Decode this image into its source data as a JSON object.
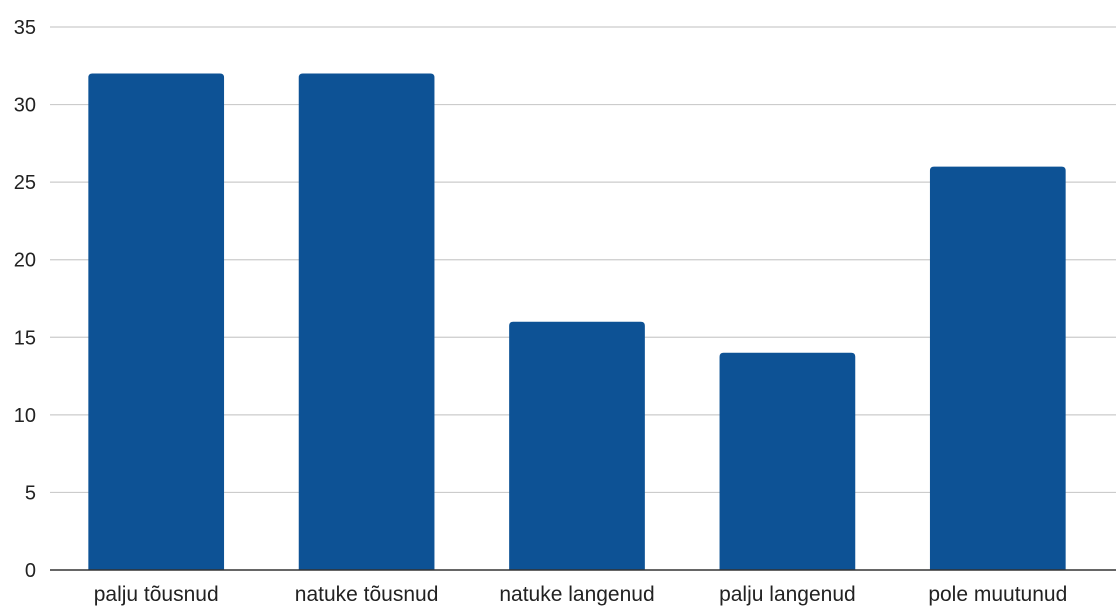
{
  "chart_data": {
    "type": "bar",
    "categories": [
      "palju tõusnud",
      "natuke tõusnud",
      "natuke langenud",
      "palju langenud",
      "pole muutunud"
    ],
    "values": [
      32,
      32,
      16,
      14,
      26
    ],
    "title": "",
    "xlabel": "",
    "ylabel": "",
    "ylim": [
      0,
      35
    ],
    "yticks": [
      0,
      5,
      10,
      15,
      20,
      25,
      30,
      35
    ],
    "grid": true,
    "legend": "none",
    "bar_color": "#0d5295"
  }
}
